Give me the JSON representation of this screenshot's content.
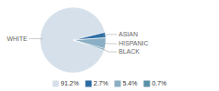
{
  "chart_data": {
    "type": "pie",
    "categories": [
      "WHITE",
      "ASIAN",
      "HISPANIC",
      "BLACK"
    ],
    "values": [
      91.2,
      2.7,
      5.4,
      0.7
    ],
    "value_labels": [
      "91.2%",
      "2.7%",
      "5.4%",
      "0.7%"
    ],
    "colors": [
      "#d6e0ea",
      "#2e6da4",
      "#8aafc4",
      "#5a8fa8"
    ],
    "legend": "bottom"
  }
}
